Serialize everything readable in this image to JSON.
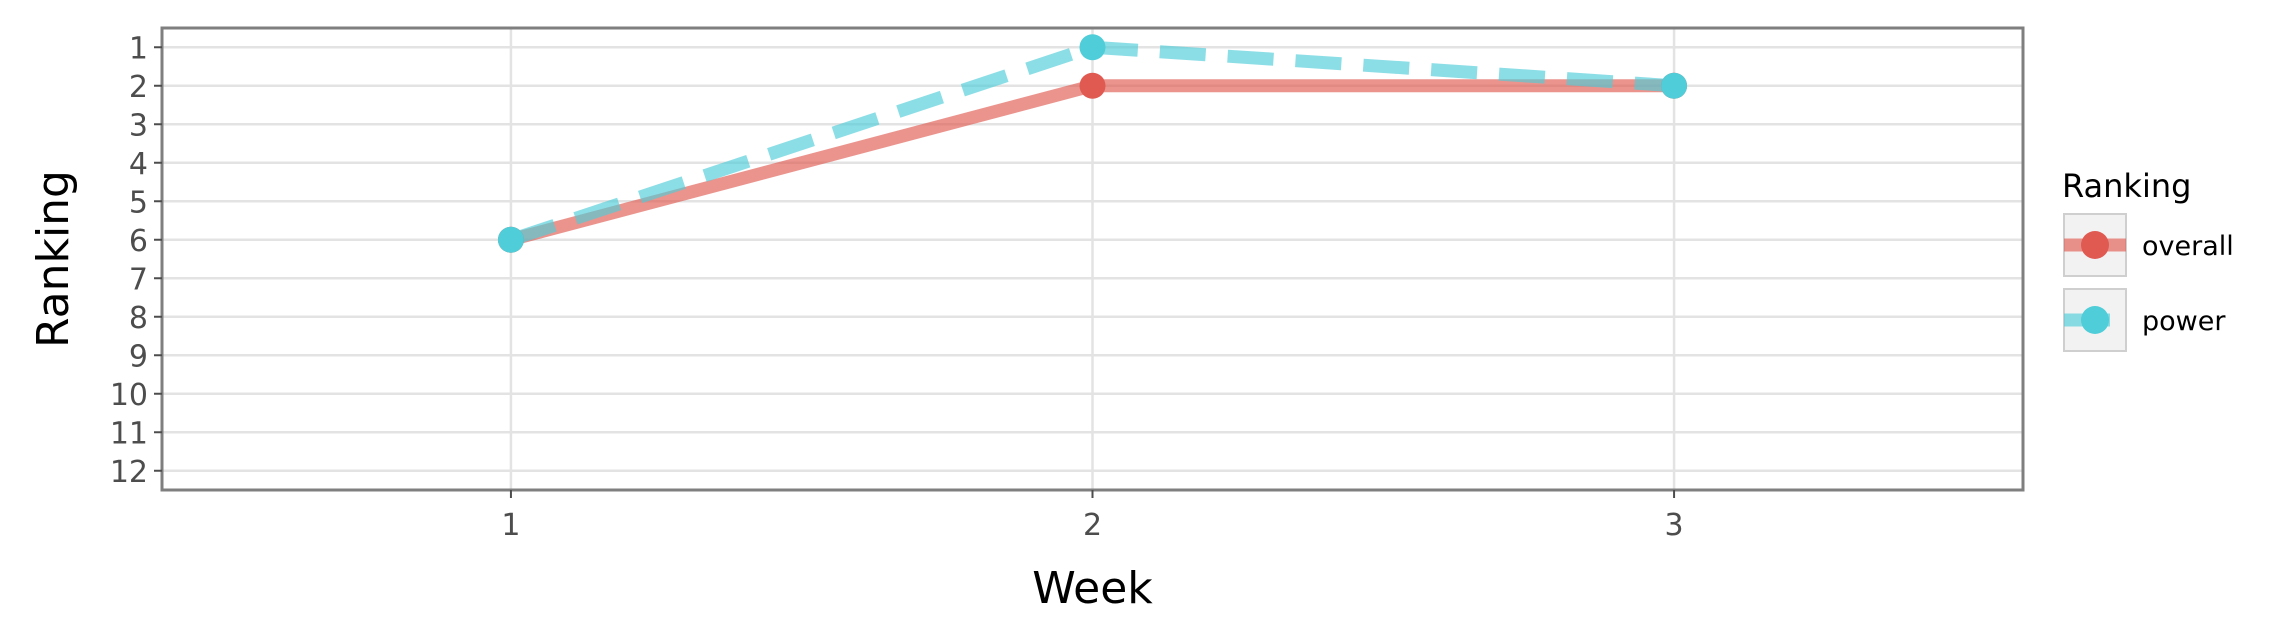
{
  "chart_data": {
    "type": "line",
    "x": [
      1,
      2,
      3
    ],
    "series": [
      {
        "name": "overall",
        "values": [
          6,
          2,
          2
        ],
        "color": "#e05a52",
        "dash": "solid"
      },
      {
        "name": "power",
        "values": [
          6,
          1,
          2
        ],
        "color": "#4fcdd8",
        "dash": "dashed"
      }
    ],
    "xlabel": "Week",
    "ylabel": "Ranking",
    "x_ticks": [
      "1",
      "2",
      "3"
    ],
    "y_ticks": [
      "1",
      "2",
      "3",
      "4",
      "5",
      "6",
      "7",
      "8",
      "9",
      "10",
      "11",
      "12"
    ],
    "xlim": [
      0.4,
      3.6
    ],
    "ylim": [
      12.5,
      0.5
    ],
    "y_reversed": true,
    "legend": {
      "title": "Ranking",
      "position": "right"
    },
    "grid": true
  }
}
